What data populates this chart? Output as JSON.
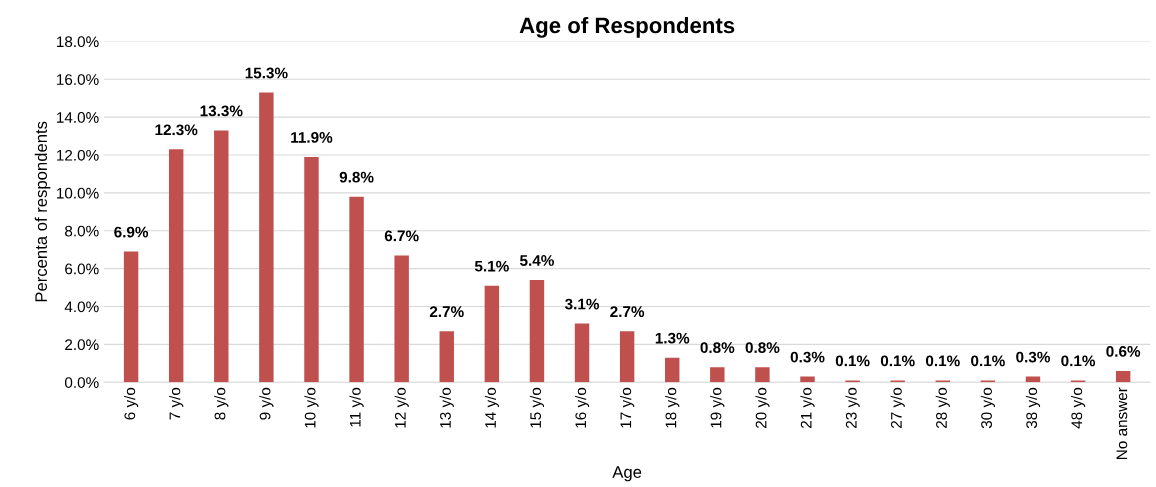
{
  "chart_data": {
    "type": "bar",
    "title": "Age of Respondents",
    "xlabel": "Age",
    "ylabel": "Percenta of respondents",
    "categories": [
      "6 y/o",
      "7 y/o",
      "8 y/o",
      "9 y/o",
      "10 y/o",
      "11 y/o",
      "12 y/o",
      "13 y/o",
      "14 y/o",
      "15 y/o",
      "16 y/o",
      "17 y/o",
      "18 y/o",
      "19 y/o",
      "20 y/o",
      "21 y/o",
      "23 y/o",
      "27 y/o",
      "28 y/o",
      "30 y/o",
      "38 y/o",
      "48 y/o",
      "No answer"
    ],
    "values": [
      6.9,
      12.3,
      13.3,
      15.3,
      11.9,
      9.8,
      6.7,
      2.7,
      5.1,
      5.4,
      3.1,
      2.7,
      1.3,
      0.8,
      0.8,
      0.3,
      0.1,
      0.1,
      0.1,
      0.1,
      0.3,
      0.1,
      0.6
    ],
    "value_labels": [
      "6.9%",
      "12.3%",
      "13.3%",
      "15.3%",
      "11.9%",
      "9.8%",
      "6.7%",
      "2.7%",
      "5.1%",
      "5.4%",
      "3.1%",
      "2.7%",
      "1.3%",
      "0.8%",
      "0.8%",
      "0.3%",
      "0.1%",
      "0.1%",
      "0.1%",
      "0.1%",
      "0.3%",
      "0.1%",
      "0.6%"
    ],
    "color": "#c0504d",
    "ylim": [
      0,
      18
    ],
    "yticks": [
      {
        "value": 0,
        "label": "0.0%"
      },
      {
        "value": 2,
        "label": "2.0%"
      },
      {
        "value": 4,
        "label": "4.0%"
      },
      {
        "value": 6,
        "label": "6.0%"
      },
      {
        "value": 8,
        "label": "8.0%"
      },
      {
        "value": 10,
        "label": "10.0%"
      },
      {
        "value": 12,
        "label": "12.0%"
      },
      {
        "value": 14,
        "label": "14.0%"
      },
      {
        "value": 16,
        "label": "16.0%"
      },
      {
        "value": 18,
        "label": "18.0%"
      }
    ],
    "grid": "y",
    "legend": false
  }
}
